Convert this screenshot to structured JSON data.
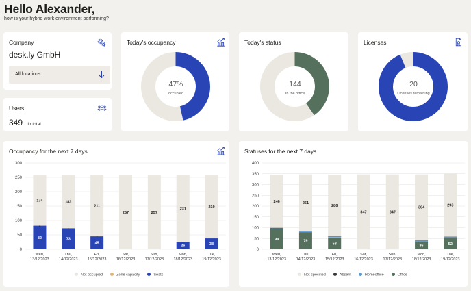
{
  "header": {
    "greeting": "Hello Alexander,",
    "subtitle": "how is your hybrid work environment performing?"
  },
  "company": {
    "title": "Company",
    "name": "desk.ly GmbH",
    "location_select": "All locations"
  },
  "users": {
    "title": "Users",
    "count": "349",
    "suffix": "in total"
  },
  "occupancy": {
    "title": "Today's occupancy",
    "value": "47%",
    "label": "occupied",
    "fraction": 0.47
  },
  "status": {
    "title": "Today's status",
    "value": "144",
    "label": "In the office",
    "fraction": 0.41
  },
  "licenses": {
    "title": "Licenses",
    "value": "20",
    "label": "Licenses remaining",
    "fraction": 0.943
  },
  "colors": {
    "blue": "#2944b5",
    "green": "#55705c",
    "light_blue": "#5b9bd5",
    "dark": "#3a3a3a",
    "beige": "#ebe7e1",
    "zone": "#e3b57a"
  },
  "occ_chart_title": "Occupancy for the next 7 days",
  "status_chart_title": "Statuses for the next 7 days",
  "chart_data": [
    {
      "type": "bar",
      "title": "Occupancy for the next 7 days",
      "categories": [
        [
          "Wed,",
          "13/12/2023"
        ],
        [
          "Thu,",
          "14/12/2023"
        ],
        [
          "Fri,",
          "15/12/2023"
        ],
        [
          "Sat,",
          "16/12/2023"
        ],
        [
          "Sun,",
          "17/12/2023"
        ],
        [
          "Mon,",
          "18/12/2023"
        ],
        [
          "Tue,",
          "19/12/2023"
        ]
      ],
      "ylim": [
        0,
        300
      ],
      "yticks": [
        0,
        50,
        100,
        150,
        200,
        250,
        300
      ],
      "stacked": true,
      "series": [
        {
          "name": "Seats",
          "color": "#2944b5",
          "values": [
            82,
            73,
            45,
            0,
            0,
            26,
            38
          ],
          "labels": [
            "82",
            "73",
            "45",
            "0",
            "0",
            "26",
            "38"
          ]
        },
        {
          "name": "Zone capacity",
          "color": "#e3b57a",
          "values": [
            1,
            1,
            1,
            0,
            0,
            0,
            0
          ],
          "labels": [
            "1",
            "1",
            "1",
            "",
            "",
            "",
            ""
          ]
        },
        {
          "name": "Not occupied",
          "color": "#ebe7e1",
          "values": [
            174,
            183,
            211,
            257,
            257,
            231,
            219
          ],
          "labels": [
            "174",
            "183",
            "211",
            "257",
            "257",
            "231",
            "219"
          ]
        }
      ],
      "legend": [
        "Not occupied",
        "Zone capacity",
        "Seats"
      ]
    },
    {
      "type": "bar",
      "title": "Statuses for the next 7 days",
      "categories": [
        [
          "Wed,",
          "13/12/2023"
        ],
        [
          "Thu,",
          "14/12/2023"
        ],
        [
          "Fri,",
          "15/12/2023"
        ],
        [
          "Sat,",
          "16/12/2023"
        ],
        [
          "Sun,",
          "17/12/2023"
        ],
        [
          "Mon,",
          "18/12/2023"
        ],
        [
          "Tue,",
          "19/12/2023"
        ]
      ],
      "ylim": [
        0,
        400
      ],
      "yticks": [
        0,
        50,
        100,
        150,
        200,
        250,
        300,
        350,
        400
      ],
      "stacked": true,
      "series": [
        {
          "name": "Office",
          "color": "#55705c",
          "values": [
            94,
            79,
            53,
            0,
            0,
            36,
            52
          ],
          "labels": [
            "94",
            "79",
            "53",
            "",
            "",
            "36",
            "52"
          ]
        },
        {
          "name": "Homeoffice",
          "color": "#5b9bd5",
          "values": [
            2,
            4,
            4,
            0,
            0,
            4,
            4
          ],
          "labels": [
            "",
            "",
            "",
            "",
            "",
            "",
            ""
          ]
        },
        {
          "name": "Absent",
          "color": "#3a3a3a",
          "values": [
            4,
            3,
            3,
            0,
            0,
            3,
            3
          ],
          "labels": [
            "",
            "",
            "",
            "",
            "",
            "",
            ""
          ]
        },
        {
          "name": "Not specified",
          "color": "#ebe7e1",
          "values": [
            246,
            261,
            286,
            347,
            347,
            304,
            293
          ],
          "labels": [
            "246",
            "261",
            "286",
            "347",
            "347",
            "304",
            "293"
          ]
        }
      ],
      "legend": [
        "Not specified",
        "Absent",
        "Homeoffice",
        "Office"
      ]
    }
  ]
}
